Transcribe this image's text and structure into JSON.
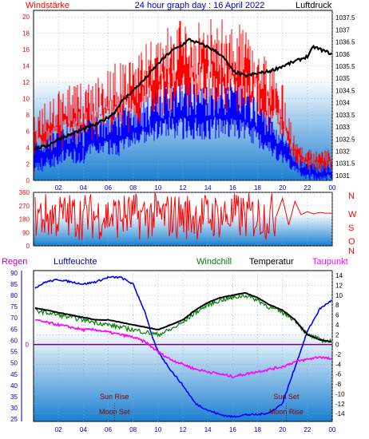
{
  "header": {
    "left_label": "Windstärke",
    "title": "24 hour graph day : 16 April 2022",
    "right_label": "Luftdruck"
  },
  "colors": {
    "wind_speed": "#ff0000",
    "wind_avg": "#0000ff",
    "pressure": "#000000",
    "direction": "#ff0000",
    "humidity": "#0000ff",
    "windchill": "#008000",
    "temperature": "#000000",
    "dewpoint": "#ff00ff",
    "rain": "#800080",
    "panel_top": "#ffffff",
    "panel_bottom": "#1a7fd0",
    "frame": "#000000"
  },
  "chart_data": [
    {
      "type": "line",
      "name": "wind-pressure",
      "x_ticks": [
        "02",
        "04",
        "06",
        "08",
        "10",
        "12",
        "14",
        "16",
        "18",
        "20",
        "22",
        "00"
      ],
      "y_left_ticks": [
        "0",
        "2",
        "4",
        "6",
        "8",
        "10",
        "12",
        "14",
        "16",
        "18",
        "20"
      ],
      "y_left_range": [
        0,
        20.8
      ],
      "y_right_ticks": [
        "1031",
        "1031.5",
        "1032",
        "1032.5",
        "1033",
        "1033.5",
        "1034",
        "1034.5",
        "1035",
        "1035.5",
        "1036",
        "1036.5",
        "1037",
        "1037.5"
      ],
      "y_right_range": [
        1030.8,
        1037.8
      ],
      "x_range": [
        0,
        24
      ],
      "pressure": {
        "x": [
          0,
          1,
          2,
          3,
          4,
          5,
          6,
          6.5,
          7,
          8,
          9,
          10,
          11,
          12,
          12.5,
          13,
          14,
          15,
          15.5,
          16,
          17,
          18,
          19,
          20,
          21,
          22,
          22.5,
          23,
          24
        ],
        "y": [
          1032.1,
          1032.2,
          1032.5,
          1032.7,
          1032.9,
          1033.1,
          1033.4,
          1033.6,
          1034.0,
          1034.5,
          1035.0,
          1035.6,
          1036.1,
          1036.4,
          1036.6,
          1036.5,
          1036.3,
          1036.0,
          1035.7,
          1035.3,
          1035.1,
          1035.2,
          1035.3,
          1035.5,
          1035.7,
          1035.9,
          1036.3,
          1036.2,
          1036.0
        ]
      },
      "wind_speed_envelope": {
        "x": [
          0,
          1,
          2,
          3,
          4,
          5,
          6,
          7,
          8,
          9,
          10,
          11,
          12,
          13,
          14,
          15,
          16,
          17,
          18,
          19,
          20,
          21,
          22,
          23,
          24
        ],
        "low": [
          1,
          2,
          3,
          4,
          4,
          4,
          5,
          5,
          6,
          6,
          7,
          8,
          8,
          8,
          8,
          8,
          8,
          7,
          6,
          5,
          4,
          2,
          1,
          1,
          1
        ],
        "high": [
          8,
          10,
          11,
          12,
          12,
          13,
          14,
          15,
          16,
          17,
          18,
          19,
          20,
          20,
          20,
          20,
          20,
          19,
          18,
          14,
          12,
          5,
          4,
          4,
          4
        ]
      },
      "wind_avg_envelope": {
        "x": [
          0,
          1,
          2,
          3,
          4,
          5,
          6,
          7,
          8,
          9,
          10,
          11,
          12,
          13,
          14,
          15,
          16,
          17,
          18,
          19,
          20,
          21,
          22,
          23,
          24
        ],
        "low": [
          1,
          1,
          2,
          2,
          2,
          3,
          3,
          3,
          4,
          4,
          5,
          5,
          5,
          5,
          5,
          5,
          5,
          5,
          4,
          3,
          2,
          1,
          0,
          0,
          0
        ],
        "high": [
          5,
          6,
          6,
          7,
          7,
          8,
          8,
          9,
          9,
          10,
          11,
          12,
          12,
          12,
          12,
          12,
          12,
          11,
          10,
          8,
          6,
          3,
          2,
          2,
          2
        ]
      }
    },
    {
      "type": "line",
      "name": "wind-direction",
      "y_ticks": [
        "0",
        "90",
        "180",
        "270",
        "360"
      ],
      "y_range": [
        0,
        360
      ],
      "right_labels": [
        "N",
        "W",
        "S",
        "O",
        "N"
      ],
      "x_range": [
        0,
        24
      ],
      "x_active_end": 19.5,
      "tail": {
        "x": [
          19.5,
          20,
          20.5,
          21,
          21.5,
          22,
          22.5,
          23,
          23.5,
          24
        ],
        "y": [
          200,
          320,
          140,
          300,
          210,
          230,
          215,
          225,
          220,
          220
        ]
      }
    },
    {
      "type": "line",
      "name": "temp-humidity",
      "legend": [
        "Regen",
        "Luftfeuchte",
        "Windchill",
        "Temperatur",
        "Taupunkt"
      ],
      "y_left_ticks": [
        "25",
        "30",
        "35",
        "40",
        "45",
        "50",
        "55",
        "60",
        "65",
        "70",
        "75",
        "80",
        "85",
        "90"
      ],
      "y_left_range": [
        24,
        91
      ],
      "y_right_ticks": [
        "-14",
        "-12",
        "-10",
        "-8",
        "-6",
        "-4",
        "-2",
        "0",
        "2",
        "4",
        "6",
        "8",
        "10",
        "12",
        "14"
      ],
      "y_right_range": [
        -15.6,
        15
      ],
      "rain_label": "0",
      "x_range": [
        0,
        24
      ],
      "annotations": {
        "sun_rise": "Sun Rise",
        "moon_set": "Moon Set",
        "sun_set": "Sun Set",
        "moon_rise": "Moon Rise",
        "sun_rise_x": 6.5,
        "moon_set_x": 6.5,
        "sun_set_x": 20.3,
        "moon_rise_x": 20.3
      },
      "humidity": {
        "x": [
          0,
          1,
          2,
          3,
          4,
          5,
          6,
          7,
          8,
          9,
          9.5,
          10,
          11,
          12,
          13,
          14,
          15,
          16,
          17,
          18,
          19,
          20,
          21,
          22,
          23,
          24
        ],
        "y": [
          83,
          86,
          87,
          86,
          85,
          86,
          88,
          88,
          85,
          72,
          62,
          55,
          47,
          40,
          32,
          29,
          27,
          26,
          27,
          27,
          28,
          32,
          48,
          64,
          74,
          78
        ]
      },
      "temperature": {
        "x": [
          0,
          1,
          2,
          3,
          4,
          5,
          6,
          7,
          8,
          9,
          10,
          11,
          12,
          13,
          14,
          15,
          16,
          17,
          18,
          19,
          20,
          21,
          22,
          23,
          24
        ],
        "y": [
          7.5,
          7.0,
          6.5,
          6.0,
          5.5,
          5.0,
          5.0,
          4.5,
          4.0,
          3.5,
          3.0,
          4.0,
          5.0,
          7.0,
          8.5,
          9.5,
          10.0,
          10.5,
          9.5,
          8.0,
          7.0,
          5.0,
          2.0,
          1.0,
          0.5
        ]
      },
      "windchill": {
        "x": [
          0,
          1,
          2,
          3,
          4,
          5,
          6,
          7,
          8,
          9,
          10,
          11,
          12,
          13,
          14,
          15,
          16,
          17,
          18,
          19,
          20,
          21,
          22,
          23,
          24
        ],
        "y": [
          7.0,
          6.5,
          6.0,
          5.5,
          5.0,
          4.5,
          4.0,
          3.5,
          3.0,
          2.5,
          2.0,
          3.0,
          4.5,
          6.5,
          8.0,
          9.0,
          9.5,
          10.0,
          9.0,
          7.5,
          6.5,
          5.0,
          2.0,
          1.0,
          0.5
        ]
      },
      "dewpoint": {
        "x": [
          0,
          1,
          2,
          3,
          4,
          5,
          6,
          7,
          8,
          9,
          10,
          11,
          12,
          13,
          14,
          15,
          16,
          17,
          18,
          19,
          20,
          21,
          22,
          23,
          24
        ],
        "y": [
          5.0,
          4.5,
          4.0,
          3.5,
          3.0,
          3.0,
          2.5,
          2.0,
          1.5,
          0.5,
          -1.5,
          -3.0,
          -4.0,
          -5.0,
          -5.5,
          -6.0,
          -6.5,
          -6.0,
          -5.5,
          -5.0,
          -4.5,
          -3.5,
          -3.0,
          -2.5,
          -3.0
        ]
      }
    }
  ]
}
